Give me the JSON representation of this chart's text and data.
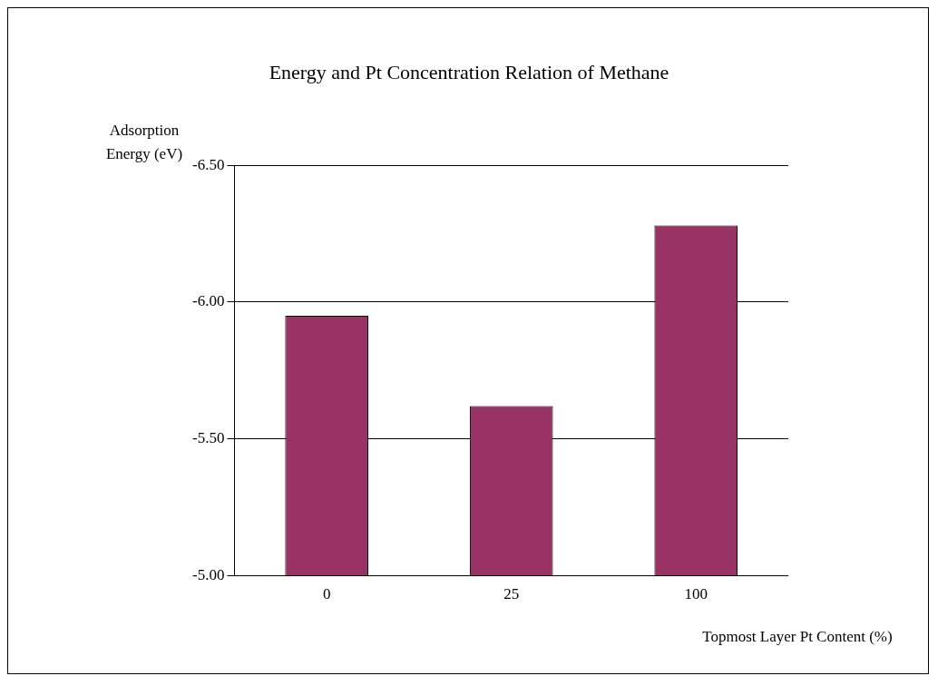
{
  "chart_data": {
    "type": "bar",
    "title": "Energy and Pt Concentration Relation of Methane",
    "xlabel": "Topmost Layer Pt Content (%)",
    "ylabel": "Adsorption Energy (eV)",
    "categories": [
      "0",
      "25",
      "100"
    ],
    "values": [
      -5.95,
      -5.62,
      -6.28
    ],
    "color": "#993366",
    "ylim": [
      -5.0,
      -6.5
    ],
    "yticks": [
      {
        "value": -5.0,
        "label": "-5.00"
      },
      {
        "value": -5.5,
        "label": "-5.50"
      },
      {
        "value": -6.0,
        "label": "-6.00"
      },
      {
        "value": -6.5,
        "label": "-6.50"
      }
    ],
    "grid": "y"
  }
}
